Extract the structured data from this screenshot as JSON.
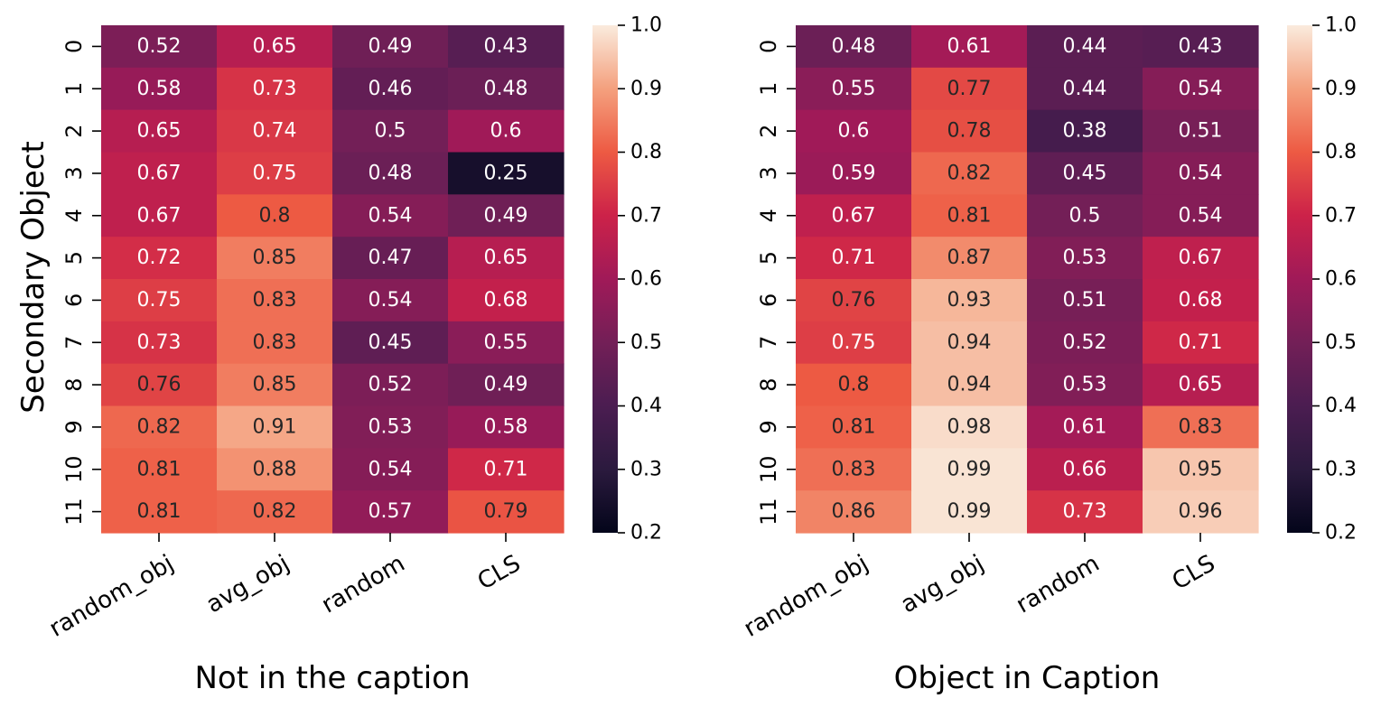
{
  "y_axis_label": "Secondary Object",
  "colorbar_ticks": [
    "1.0",
    "0.9",
    "0.8",
    "0.7",
    "0.6",
    "0.5",
    "0.4",
    "0.3",
    "0.2"
  ],
  "chart_data": [
    {
      "type": "heatmap",
      "xlabel": "Not in the caption",
      "ylabel": "Secondary Object",
      "rows": [
        "0",
        "1",
        "2",
        "3",
        "4",
        "5",
        "6",
        "7",
        "8",
        "9",
        "10",
        "11"
      ],
      "columns": [
        "random_obj",
        "avg_obj",
        "random",
        "CLS"
      ],
      "values": [
        [
          0.52,
          0.65,
          0.49,
          0.43
        ],
        [
          0.58,
          0.73,
          0.46,
          0.48
        ],
        [
          0.65,
          0.74,
          0.5,
          0.6
        ],
        [
          0.67,
          0.75,
          0.48,
          0.25
        ],
        [
          0.67,
          0.8,
          0.54,
          0.49
        ],
        [
          0.72,
          0.85,
          0.47,
          0.65
        ],
        [
          0.75,
          0.83,
          0.54,
          0.68
        ],
        [
          0.73,
          0.83,
          0.45,
          0.55
        ],
        [
          0.76,
          0.85,
          0.52,
          0.49
        ],
        [
          0.82,
          0.91,
          0.53,
          0.58
        ],
        [
          0.81,
          0.88,
          0.54,
          0.71
        ],
        [
          0.81,
          0.82,
          0.57,
          0.79
        ]
      ],
      "colorbar_range": [
        0.2,
        1.0
      ],
      "colormap": "rocket"
    },
    {
      "type": "heatmap",
      "xlabel": "Object in Caption",
      "ylabel": "",
      "rows": [
        "0",
        "1",
        "2",
        "3",
        "4",
        "5",
        "6",
        "7",
        "8",
        "9",
        "10",
        "11"
      ],
      "columns": [
        "random_obj",
        "avg_obj",
        "random",
        "CLS"
      ],
      "values": [
        [
          0.48,
          0.61,
          0.44,
          0.43
        ],
        [
          0.55,
          0.77,
          0.44,
          0.54
        ],
        [
          0.6,
          0.78,
          0.38,
          0.51
        ],
        [
          0.59,
          0.82,
          0.45,
          0.54
        ],
        [
          0.67,
          0.81,
          0.5,
          0.54
        ],
        [
          0.71,
          0.87,
          0.53,
          0.67
        ],
        [
          0.76,
          0.93,
          0.51,
          0.68
        ],
        [
          0.75,
          0.94,
          0.52,
          0.71
        ],
        [
          0.8,
          0.94,
          0.53,
          0.65
        ],
        [
          0.81,
          0.98,
          0.61,
          0.83
        ],
        [
          0.83,
          0.99,
          0.66,
          0.95
        ],
        [
          0.86,
          0.99,
          0.73,
          0.96
        ]
      ],
      "colorbar_range": [
        0.2,
        1.0
      ],
      "colormap": "rocket"
    }
  ]
}
